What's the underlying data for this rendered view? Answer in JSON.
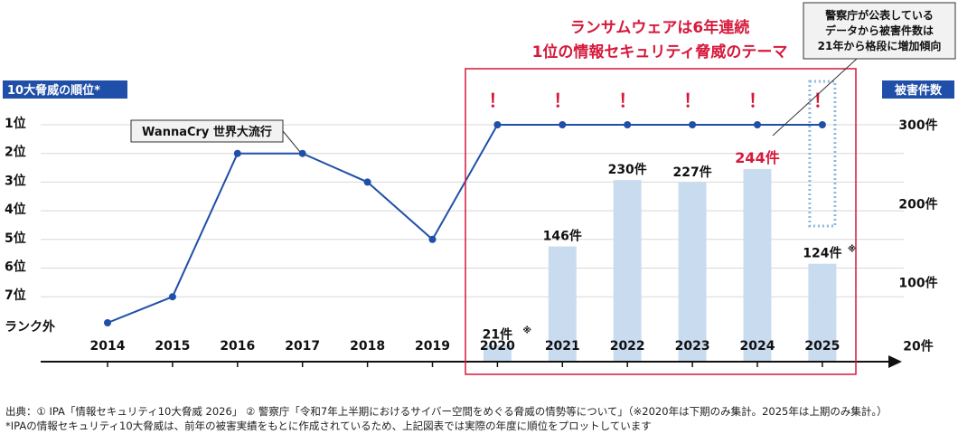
{
  "chart_data": {
    "type": "bar+line",
    "left_axis_title": "10大脅威の順位*",
    "right_axis_title": "被害件数",
    "rank_labels": [
      "1位",
      "2位",
      "3位",
      "4位",
      "5位",
      "6位",
      "7位",
      "ランク外"
    ],
    "right_tick_labels": [
      "300件",
      "200件",
      "100件",
      "20件"
    ],
    "right_tick_values": [
      300,
      200,
      100,
      20
    ],
    "years": [
      "2014",
      "2015",
      "2016",
      "2017",
      "2018",
      "2019",
      "2020",
      "2021",
      "2022",
      "2023",
      "2024",
      "2025"
    ],
    "rank_series": [
      8,
      7,
      2,
      2,
      3,
      5,
      1,
      1,
      1,
      1,
      1,
      1
    ],
    "damage_years": [
      "2020",
      "2021",
      "2022",
      "2023",
      "2024",
      "2025"
    ],
    "damage_values": [
      21,
      146,
      230,
      227,
      244,
      124
    ],
    "damage_labels": [
      "21件",
      "146件",
      "230件",
      "227件",
      "244件",
      "124件"
    ],
    "damage_note_marks": [
      "※",
      "",
      "",
      "",
      "",
      "※"
    ],
    "highlight_color": "#d6193b",
    "line_color": "#1f4fa8",
    "bar_color": "#c9dcef",
    "axis_title_bg": "#1f4fa8",
    "callout_wannacry": "WannaCry 世界大流行",
    "callout_ransomware": [
      "ランサムウェアは6年連続",
      "1位の情報セキュリティ脅威のテーマ"
    ],
    "callout_police": [
      "警察庁が公表している",
      "データから被害件数は",
      "21年から格段に増加傾向"
    ],
    "exclamation": "！"
  },
  "source": {
    "line1": "出典：① IPA「情報セキュリティ10大脅威 2026」 ② 警察庁「令和7年上半期におけるサイバー空間をめぐる脅威の情勢等について」（※2020年は下期のみ集計。2025年は上期のみ集計。）",
    "line2": "*IPAの情報セキュリティ10大脅威は、前年の被害実績をもとに作成されているため、上記図表では実際の年度に順位をプロットしています"
  }
}
